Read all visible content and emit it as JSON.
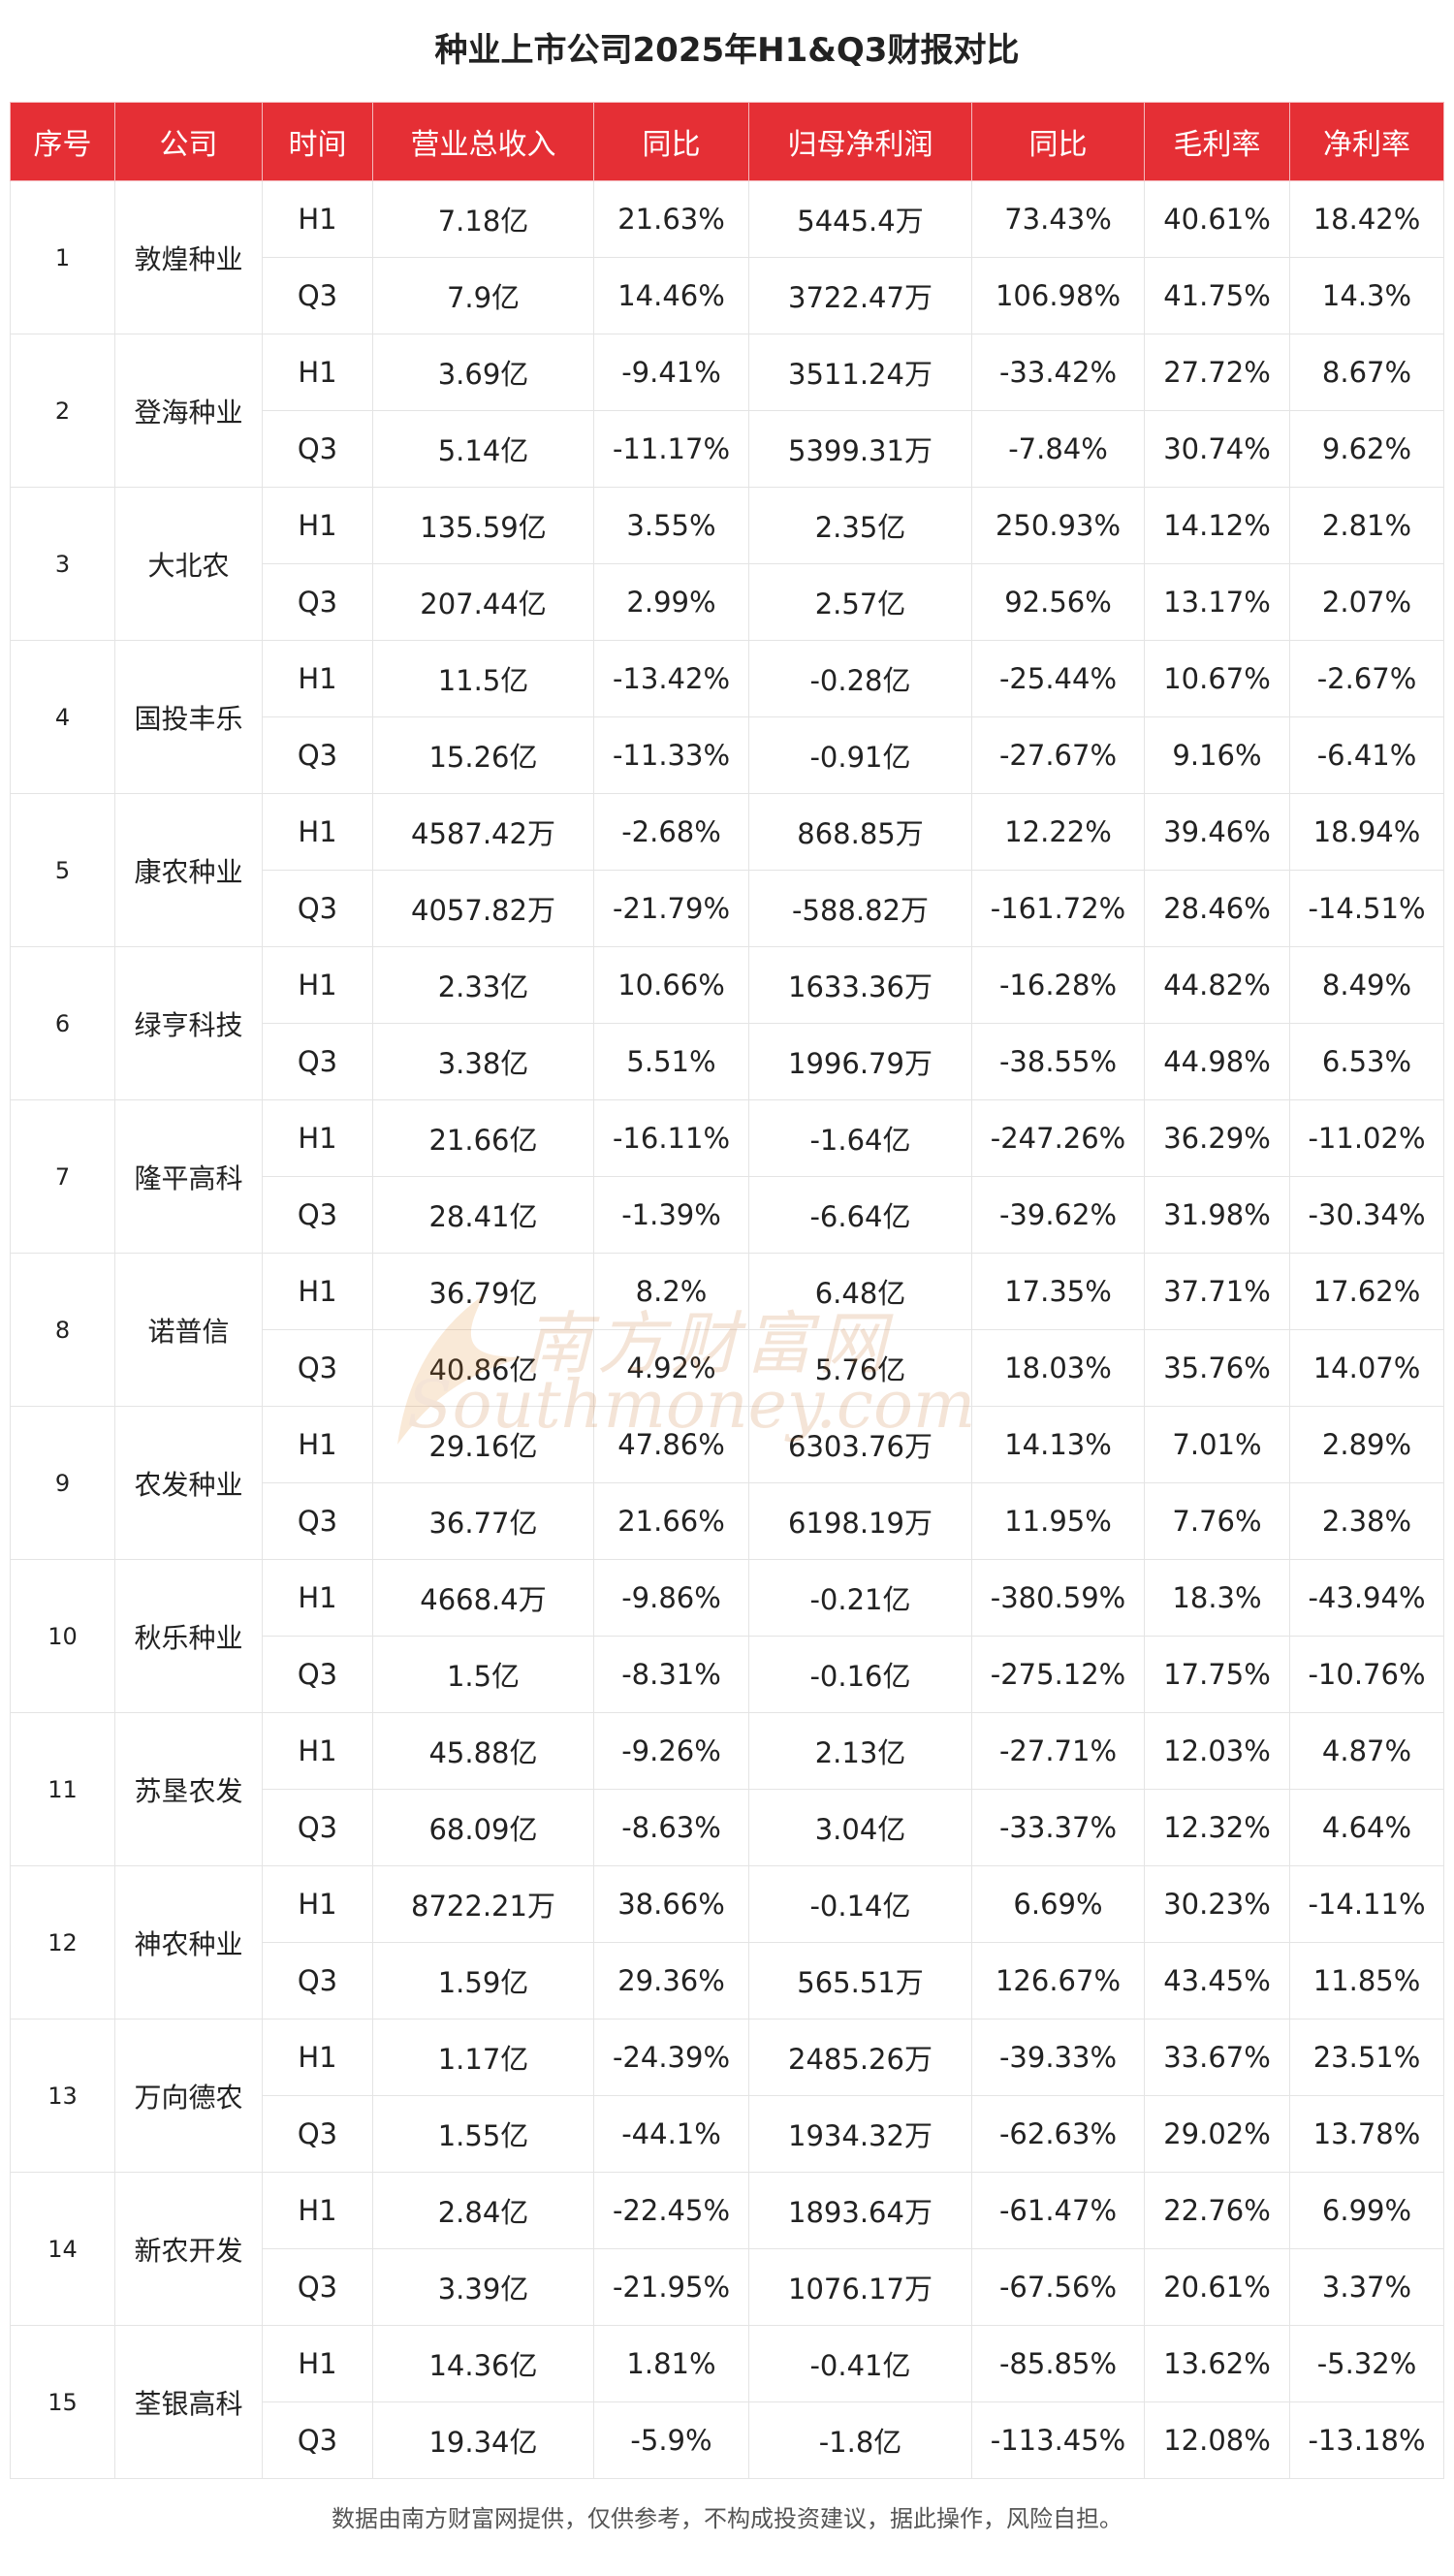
{
  "title": "种业上市公司2025年H1&Q3财报对比",
  "headers": [
    "序号",
    "公司",
    "时间",
    "营业总收入",
    "同比",
    "归母净利润",
    "同比",
    "毛利率",
    "净利率"
  ],
  "rows": [
    {
      "no": "1",
      "company": "敦煌种业",
      "h1": [
        "H1",
        "7.18亿",
        "21.63%",
        "5445.4万",
        "73.43%",
        "40.61%",
        "18.42%"
      ],
      "q3": [
        "Q3",
        "7.9亿",
        "14.46%",
        "3722.47万",
        "106.98%",
        "41.75%",
        "14.3%"
      ]
    },
    {
      "no": "2",
      "company": "登海种业",
      "h1": [
        "H1",
        "3.69亿",
        "-9.41%",
        "3511.24万",
        "-33.42%",
        "27.72%",
        "8.67%"
      ],
      "q3": [
        "Q3",
        "5.14亿",
        "-11.17%",
        "5399.31万",
        "-7.84%",
        "30.74%",
        "9.62%"
      ]
    },
    {
      "no": "3",
      "company": "大北农",
      "h1": [
        "H1",
        "135.59亿",
        "3.55%",
        "2.35亿",
        "250.93%",
        "14.12%",
        "2.81%"
      ],
      "q3": [
        "Q3",
        "207.44亿",
        "2.99%",
        "2.57亿",
        "92.56%",
        "13.17%",
        "2.07%"
      ]
    },
    {
      "no": "4",
      "company": "国投丰乐",
      "h1": [
        "H1",
        "11.5亿",
        "-13.42%",
        "-0.28亿",
        "-25.44%",
        "10.67%",
        "-2.67%"
      ],
      "q3": [
        "Q3",
        "15.26亿",
        "-11.33%",
        "-0.91亿",
        "-27.67%",
        "9.16%",
        "-6.41%"
      ]
    },
    {
      "no": "5",
      "company": "康农种业",
      "h1": [
        "H1",
        "4587.42万",
        "-2.68%",
        "868.85万",
        "12.22%",
        "39.46%",
        "18.94%"
      ],
      "q3": [
        "Q3",
        "4057.82万",
        "-21.79%",
        "-588.82万",
        "-161.72%",
        "28.46%",
        "-14.51%"
      ]
    },
    {
      "no": "6",
      "company": "绿亨科技",
      "h1": [
        "H1",
        "2.33亿",
        "10.66%",
        "1633.36万",
        "-16.28%",
        "44.82%",
        "8.49%"
      ],
      "q3": [
        "Q3",
        "3.38亿",
        "5.51%",
        "1996.79万",
        "-38.55%",
        "44.98%",
        "6.53%"
      ]
    },
    {
      "no": "7",
      "company": "隆平高科",
      "h1": [
        "H1",
        "21.66亿",
        "-16.11%",
        "-1.64亿",
        "-247.26%",
        "36.29%",
        "-11.02%"
      ],
      "q3": [
        "Q3",
        "28.41亿",
        "-1.39%",
        "-6.64亿",
        "-39.62%",
        "31.98%",
        "-30.34%"
      ]
    },
    {
      "no": "8",
      "company": "诺普信",
      "h1": [
        "H1",
        "36.79亿",
        "8.2%",
        "6.48亿",
        "17.35%",
        "37.71%",
        "17.62%"
      ],
      "q3": [
        "Q3",
        "40.86亿",
        "4.92%",
        "5.76亿",
        "18.03%",
        "35.76%",
        "14.07%"
      ]
    },
    {
      "no": "9",
      "company": "农发种业",
      "h1": [
        "H1",
        "29.16亿",
        "47.86%",
        "6303.76万",
        "14.13%",
        "7.01%",
        "2.89%"
      ],
      "q3": [
        "Q3",
        "36.77亿",
        "21.66%",
        "6198.19万",
        "11.95%",
        "7.76%",
        "2.38%"
      ]
    },
    {
      "no": "10",
      "company": "秋乐种业",
      "h1": [
        "H1",
        "4668.4万",
        "-9.86%",
        "-0.21亿",
        "-380.59%",
        "18.3%",
        "-43.94%"
      ],
      "q3": [
        "Q3",
        "1.5亿",
        "-8.31%",
        "-0.16亿",
        "-275.12%",
        "17.75%",
        "-10.76%"
      ]
    },
    {
      "no": "11",
      "company": "苏垦农发",
      "h1": [
        "H1",
        "45.88亿",
        "-9.26%",
        "2.13亿",
        "-27.71%",
        "12.03%",
        "4.87%"
      ],
      "q3": [
        "Q3",
        "68.09亿",
        "-8.63%",
        "3.04亿",
        "-33.37%",
        "12.32%",
        "4.64%"
      ]
    },
    {
      "no": "12",
      "company": "神农种业",
      "h1": [
        "H1",
        "8722.21万",
        "38.66%",
        "-0.14亿",
        "6.69%",
        "30.23%",
        "-14.11%"
      ],
      "q3": [
        "Q3",
        "1.59亿",
        "29.36%",
        "565.51万",
        "126.67%",
        "43.45%",
        "11.85%"
      ]
    },
    {
      "no": "13",
      "company": "万向德农",
      "h1": [
        "H1",
        "1.17亿",
        "-24.39%",
        "2485.26万",
        "-39.33%",
        "33.67%",
        "23.51%"
      ],
      "q3": [
        "Q3",
        "1.55亿",
        "-44.1%",
        "1934.32万",
        "-62.63%",
        "29.02%",
        "13.78%"
      ]
    },
    {
      "no": "14",
      "company": "新农开发",
      "h1": [
        "H1",
        "2.84亿",
        "-22.45%",
        "1893.64万",
        "-61.47%",
        "22.76%",
        "6.99%"
      ],
      "q3": [
        "Q3",
        "3.39亿",
        "-21.95%",
        "1076.17万",
        "-67.56%",
        "20.61%",
        "3.37%"
      ]
    },
    {
      "no": "15",
      "company": "荃银高科",
      "h1": [
        "H1",
        "14.36亿",
        "1.81%",
        "-0.41亿",
        "-85.85%",
        "13.62%",
        "-5.32%"
      ],
      "q3": [
        "Q3",
        "19.34亿",
        "-5.9%",
        "-1.8亿",
        "-113.45%",
        "12.08%",
        "-13.18%"
      ]
    }
  ],
  "watermark": {
    "cn": "南方财富网",
    "en": "Southmoney.com"
  },
  "footer": "数据由南方财富网提供，仅供参考，不构成投资建议，据此操作，风险自担。",
  "colors": {
    "header_bg": "#e52f35",
    "header_text": "#ffffff",
    "grid": "#e4e4e4"
  }
}
